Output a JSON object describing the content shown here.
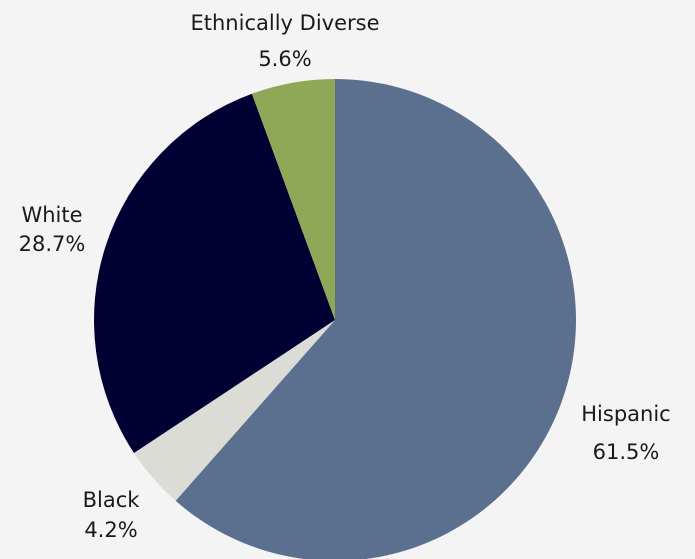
{
  "chart_data": {
    "type": "pie",
    "title": "",
    "start_angle_deg": 0,
    "direction": "clockwise",
    "legend": "none",
    "background": "#f4f4f4",
    "slices": [
      {
        "label": "Hispanic",
        "value": 61.5,
        "display": "61.5%",
        "color": "#5b708f"
      },
      {
        "label": "Black",
        "value": 4.2,
        "display": "4.2%",
        "color": "#dcdcd7"
      },
      {
        "label": "White",
        "value": 28.7,
        "display": "28.7%",
        "color": "#000033"
      },
      {
        "label": "Ethnically Diverse",
        "value": 5.6,
        "display": "5.6%",
        "color": "#8fa857"
      }
    ]
  }
}
